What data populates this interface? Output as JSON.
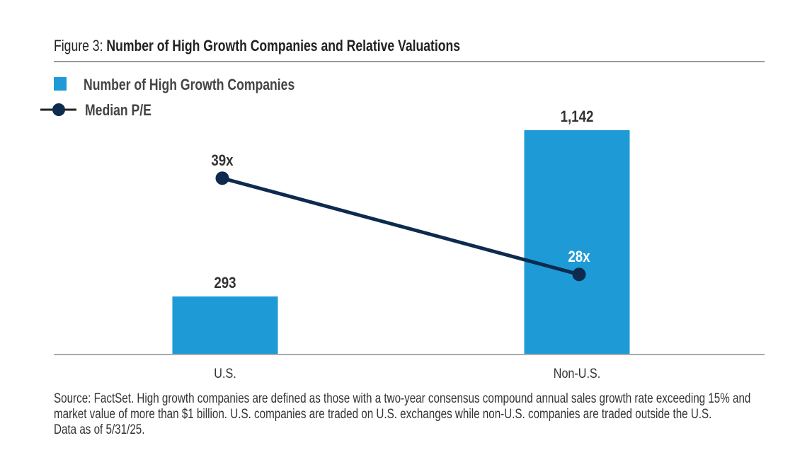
{
  "figure_label": "Figure 3:",
  "chart_data": {
    "type": "bar",
    "title": "Number of High Growth Companies and Relative Valuations",
    "categories": [
      "U.S.",
      "Non-U.S."
    ],
    "series": [
      {
        "name": "Number of High Growth Companies",
        "type": "bar",
        "values": [
          293,
          1142
        ],
        "labels": [
          "293",
          "1,142"
        ],
        "color": "#1e9ad6"
      },
      {
        "name": "Median P/E",
        "type": "line",
        "values": [
          39,
          28
        ],
        "labels": [
          "39x",
          "28x"
        ],
        "color": "#0d2b4e"
      }
    ],
    "legend": "top-left",
    "grid": false
  },
  "footnote": [
    "Source: FactSet. High growth companies are defined as those with a two-year consensus compound annual sales growth rate exceeding 15% and",
    "market value of more than $1 billion. U.S. companies are traded on U.S. exchanges while non-U.S. companies are traded outside the U.S.",
    "Data as of 5/31/25."
  ]
}
